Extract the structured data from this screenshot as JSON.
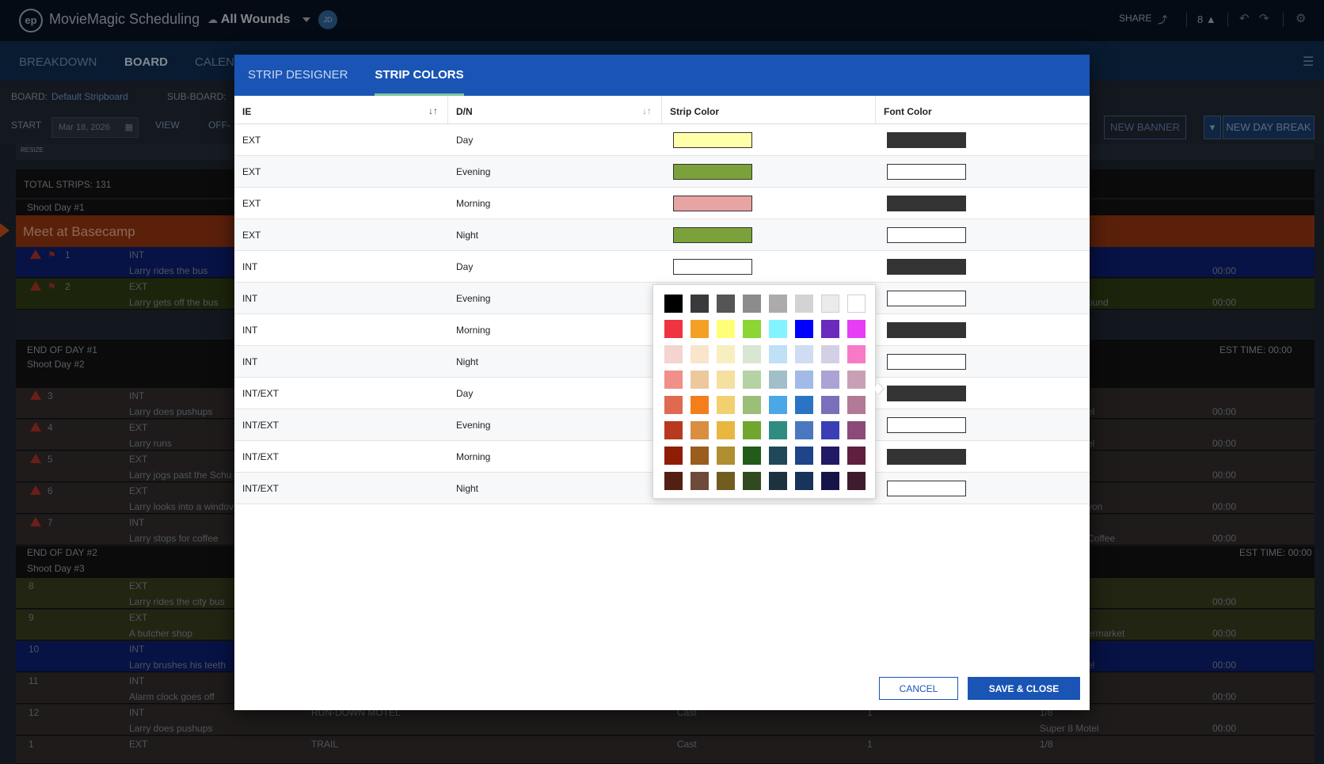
{
  "app": {
    "logo": "ep",
    "title": "MovieMagic Scheduling",
    "project": "All Wounds",
    "avatar_initials": "JD",
    "share_label": "SHARE",
    "warning_count": "8"
  },
  "nav": {
    "items": [
      "BREAKDOWN",
      "BOARD",
      "CALEN"
    ]
  },
  "toolbar": {
    "board_label": "BOARD:",
    "board_value": "Default Stripboard",
    "subboard_label": "SUB-BOARD:",
    "start_label": "START",
    "start_date": "Mar 18, 2026",
    "view_label": "VIEW",
    "off_label": "OFF-",
    "new_banner": "NEW BANNER",
    "new_day_break": "NEW DAY BREAK"
  },
  "board": {
    "resize_label": "RESIZE",
    "total_strips": "TOTAL STRIPS: 131",
    "shoot_day_1": "Shoot Day #1",
    "banner": "Meet at Basecamp",
    "end_day_1": "END OF DAY #1",
    "shoot_day_2": "Shoot Day #2",
    "est_time": "EST TIME: 00:00",
    "end_day_2": "END OF DAY #2",
    "shoot_day_3": "Shoot Day #3",
    "strips": [
      {
        "num": "1",
        "ie": "INT",
        "desc": "Larry rides the bus",
        "right": "",
        "time": "00:00"
      },
      {
        "num": "2",
        "ie": "EXT",
        "desc": "Larry gets off the bus",
        "right": "ound",
        "time": "00:00"
      },
      {
        "num": "3",
        "ie": "INT",
        "desc": "Larry does pushups",
        "right": "el",
        "time": "00:00"
      },
      {
        "num": "4",
        "ie": "EXT",
        "desc": "Larry runs",
        "right": "el",
        "time": "00:00"
      },
      {
        "num": "5",
        "ie": "EXT",
        "desc": "Larry jogs past the Schu",
        "right": "",
        "time": "00:00"
      },
      {
        "num": "6",
        "ie": "EXT",
        "desc": "Larry looks into a windov",
        "right": "yon",
        "time": "00:00"
      },
      {
        "num": "7",
        "ie": "INT",
        "desc": "Larry stops for coffee",
        "right": "Coffee",
        "time": "00:00"
      },
      {
        "num": "8",
        "ie": "EXT",
        "desc": "Larry rides the city bus",
        "right": "",
        "time": "00:00"
      },
      {
        "num": "9",
        "ie": "EXT",
        "desc": "A butcher shop",
        "right": "ermarket",
        "time": "00:00"
      },
      {
        "num": "10",
        "ie": "INT",
        "desc": "Larry brushes his teeth",
        "right": "el",
        "time": "00:00"
      },
      {
        "num": "11",
        "ie": "INT",
        "desc": "Alarm clock goes off",
        "right": "",
        "time": "00:00"
      },
      {
        "num": "12",
        "ie": "INT",
        "desc": "Larry does pushups",
        "right": "Super 8 Motel",
        "time": "00:00"
      }
    ],
    "row12_location": "RUN-DOWN MOTEL",
    "row12_cast": "Cast",
    "row12_count": "1",
    "row12_pages": "1/8",
    "row13_num": "1",
    "row13_ie": "EXT",
    "row13_location": "TRAIL",
    "row13_cast": "Cast",
    "row13_count": "1",
    "row13_pages": "1/8"
  },
  "modal": {
    "tabs": [
      "STRIP DESIGNER",
      "STRIP COLORS"
    ],
    "columns": [
      "IE",
      "D/N",
      "Strip Color",
      "Font Color"
    ],
    "rows": [
      {
        "ie": "EXT",
        "dn": "Day",
        "strip": "#ffffaa",
        "font": "#333333"
      },
      {
        "ie": "EXT",
        "dn": "Evening",
        "strip": "#7ba23a",
        "font": "#ffffff"
      },
      {
        "ie": "EXT",
        "dn": "Morning",
        "strip": "#e8a3a3",
        "font": "#333333"
      },
      {
        "ie": "EXT",
        "dn": "Night",
        "strip": "#7ba23a",
        "font": "#ffffff"
      },
      {
        "ie": "INT",
        "dn": "Day",
        "strip": "#ffffff",
        "font": "#333333"
      },
      {
        "ie": "INT",
        "dn": "Evening",
        "strip": "",
        "font": "#ffffff"
      },
      {
        "ie": "INT",
        "dn": "Morning",
        "strip": "",
        "font": "#333333"
      },
      {
        "ie": "INT",
        "dn": "Night",
        "strip": "",
        "font": "#ffffff"
      },
      {
        "ie": "INT/EXT",
        "dn": "Day",
        "strip": "",
        "font": "#333333"
      },
      {
        "ie": "INT/EXT",
        "dn": "Evening",
        "strip": "",
        "font": "#ffffff"
      },
      {
        "ie": "INT/EXT",
        "dn": "Morning",
        "strip": "",
        "font": "#333333"
      },
      {
        "ie": "INT/EXT",
        "dn": "Night",
        "strip": "",
        "font": "#ffffff"
      }
    ],
    "palette": [
      [
        "#000000",
        "#3a3a3a",
        "#555555",
        "#8c8c8c",
        "#ababab",
        "#d3d3d3",
        "#ebebeb",
        "#ffffff"
      ],
      [
        "#ef3340",
        "#f4a024",
        "#ffff77",
        "#8bd534",
        "#82f3ff",
        "#0000ff",
        "#6a2bbd",
        "#e53ef5"
      ],
      [
        "#f5d3cf",
        "#f9e4cc",
        "#f8eec0",
        "#d9e6d0",
        "#bfe0f5",
        "#cfdcf3",
        "#d3d0e6",
        "#f67ac7"
      ],
      [
        "#f09089",
        "#edc89c",
        "#f5e09f",
        "#b4d2a4",
        "#a2bec8",
        "#a2bbe6",
        "#aaa3d4",
        "#c8a0b6"
      ],
      [
        "#e06a50",
        "#f57e1c",
        "#f2d070",
        "#9bbe78",
        "#4aa8e6",
        "#2b74c5",
        "#7a6fbb",
        "#b27a97"
      ],
      [
        "#b8391f",
        "#d98e42",
        "#e7b740",
        "#71a62e",
        "#2e8c80",
        "#4a78c0",
        "#3a3fb5",
        "#8b4a78"
      ],
      [
        "#8f1d06",
        "#9a5d1e",
        "#b08f30",
        "#215c18",
        "#214858",
        "#1f4488",
        "#231a66",
        "#601f3c"
      ],
      [
        "#531f12",
        "#6d4a3a",
        "#725d21",
        "#2f4a21",
        "#1c323e",
        "#17345a",
        "#161347",
        "#3f1c2d"
      ]
    ],
    "cancel_label": "CANCEL",
    "save_label": "SAVE & CLOSE"
  }
}
